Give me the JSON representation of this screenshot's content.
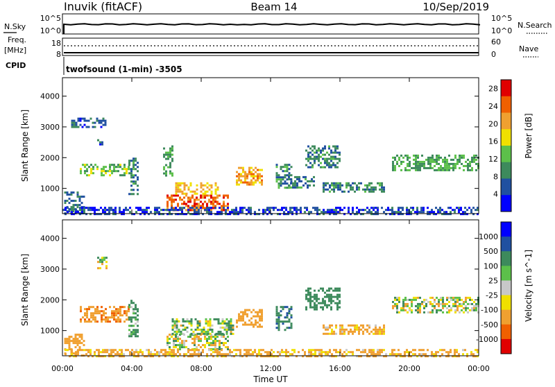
{
  "header": {
    "station": "Inuvik (fitACF)",
    "beam": "Beam 14",
    "date": "10/Sep/2019"
  },
  "top_panels": {
    "noise_left_label": "N.Sky",
    "noise_right_label": "N.Search",
    "noise_left_ticks": [
      "10^5",
      "10^0"
    ],
    "noise_right_ticks": [
      "10^5",
      "10^0"
    ],
    "freq_label_line1": "Freq.",
    "freq_label_line2": "[MHz]",
    "freq_left_ticks": [
      "18",
      "8"
    ],
    "nave_label": "Nave",
    "nave_right_ticks": [
      "60",
      "0"
    ],
    "cpid_label": "CPID",
    "cpid_text": "twofsound (1-min) -3505"
  },
  "colors": {
    "power_scale": [
      "#0000ff",
      "#2050a0",
      "#3d8a5c",
      "#5cc04a",
      "#f0e000",
      "#f0a030",
      "#f06000",
      "#e00000"
    ],
    "velocity_scale": [
      "#e00000",
      "#f06000",
      "#f0a030",
      "#f0e000",
      "#c8c8c8",
      "#5cc04a",
      "#3d8a5c",
      "#2050a0",
      "#0000ff"
    ]
  },
  "chart_data": [
    {
      "type": "heatmap",
      "title": "",
      "xlabel": "",
      "ylabel": "Slant Range [km]",
      "xlim": [
        0,
        24
      ],
      "ylim": [
        180,
        4600
      ],
      "x_ticks": [
        0,
        4,
        8,
        12,
        16,
        20,
        24
      ],
      "y_ticks": [
        1000,
        2000,
        3000,
        4000
      ],
      "y_tick_labels": [
        "1000",
        "2000",
        "3000",
        "4000"
      ],
      "colorbar_label": "Power [dB]",
      "colorbar_ticks": [
        "4",
        "8",
        "12",
        "16",
        "20",
        "24",
        "28"
      ],
      "colorbar_range": [
        0,
        30
      ],
      "regions": [
        {
          "x": [
            0.1,
            1.3
          ],
          "y": [
            200,
            900
          ],
          "value": 8
        },
        {
          "x": [
            0.5,
            2.5
          ],
          "y": [
            3000,
            3300
          ],
          "value": 6
        },
        {
          "x": [
            1.0,
            3.8
          ],
          "y": [
            1400,
            1800
          ],
          "value": 14
        },
        {
          "x": [
            2.0,
            2.3
          ],
          "y": [
            2400,
            2600
          ],
          "value": 6
        },
        {
          "x": [
            3.8,
            4.4
          ],
          "y": [
            800,
            2000
          ],
          "value": 9
        },
        {
          "x": [
            6.0,
            9.5
          ],
          "y": [
            300,
            800
          ],
          "value": 26
        },
        {
          "x": [
            6.5,
            9.0
          ],
          "y": [
            800,
            1200
          ],
          "value": 20
        },
        {
          "x": [
            5.8,
            6.4
          ],
          "y": [
            1400,
            2400
          ],
          "value": 12
        },
        {
          "x": [
            10.0,
            11.5
          ],
          "y": [
            1100,
            1700
          ],
          "value": 22
        },
        {
          "x": [
            12.3,
            13.2
          ],
          "y": [
            1000,
            1800
          ],
          "value": 10
        },
        {
          "x": [
            13.0,
            14.5
          ],
          "y": [
            1000,
            1400
          ],
          "value": 9
        },
        {
          "x": [
            14.0,
            16.0
          ],
          "y": [
            1700,
            2400
          ],
          "value": 9
        },
        {
          "x": [
            15.0,
            18.5
          ],
          "y": [
            900,
            1200
          ],
          "value": 9
        },
        {
          "x": [
            19.0,
            24.0
          ],
          "y": [
            1600,
            2100
          ],
          "value": 12
        },
        {
          "x": [
            0.0,
            24.0
          ],
          "y": [
            180,
            400
          ],
          "value": 5
        }
      ]
    },
    {
      "type": "heatmap",
      "title": "",
      "xlabel": "Time UT",
      "ylabel": "Slant Range [km]",
      "xlim": [
        0,
        24
      ],
      "ylim": [
        180,
        4600
      ],
      "x_ticks": [
        0,
        4,
        8,
        12,
        16,
        20,
        24
      ],
      "x_tick_labels": [
        "00:00",
        "04:00",
        "08:00",
        "12:00",
        "16:00",
        "20:00",
        "00:00"
      ],
      "y_ticks": [
        1000,
        2000,
        3000,
        4000
      ],
      "y_tick_labels": [
        "1000",
        "2000",
        "3000",
        "4000"
      ],
      "colorbar_label": "Velocity [m s^-1]",
      "colorbar_ticks": [
        "1000",
        "500",
        "100",
        "25",
        "-25",
        "-100",
        "-500",
        "-1000"
      ],
      "colorbar_range": [
        -1200,
        1200
      ],
      "regions": [
        {
          "x": [
            0.1,
            1.3
          ],
          "y": [
            200,
            900
          ],
          "value": -300
        },
        {
          "x": [
            1.0,
            3.8
          ],
          "y": [
            1300,
            1800
          ],
          "value": -400
        },
        {
          "x": [
            2.0,
            2.5
          ],
          "y": [
            3000,
            3400
          ],
          "value": 0
        },
        {
          "x": [
            3.8,
            4.4
          ],
          "y": [
            800,
            2000
          ],
          "value": 200
        },
        {
          "x": [
            6.0,
            9.5
          ],
          "y": [
            400,
            900
          ],
          "value": 0
        },
        {
          "x": [
            6.3,
            9.8
          ],
          "y": [
            900,
            1400
          ],
          "value": 80
        },
        {
          "x": [
            10.0,
            11.5
          ],
          "y": [
            1100,
            1700
          ],
          "value": -300
        },
        {
          "x": [
            12.3,
            13.2
          ],
          "y": [
            1000,
            1800
          ],
          "value": 400
        },
        {
          "x": [
            14.0,
            16.0
          ],
          "y": [
            1700,
            2400
          ],
          "value": 300
        },
        {
          "x": [
            15.0,
            18.5
          ],
          "y": [
            900,
            1200
          ],
          "value": -200
        },
        {
          "x": [
            19.0,
            24.0
          ],
          "y": [
            1600,
            2100
          ],
          "value": 0
        },
        {
          "x": [
            0.0,
            24.0
          ],
          "y": [
            180,
            400
          ],
          "value": -200
        }
      ]
    }
  ]
}
